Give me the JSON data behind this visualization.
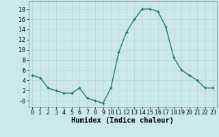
{
  "x": [
    0,
    1,
    2,
    3,
    4,
    5,
    6,
    7,
    8,
    9,
    10,
    11,
    12,
    13,
    14,
    15,
    16,
    17,
    18,
    19,
    20,
    21,
    22,
    23
  ],
  "y": [
    5.0,
    4.5,
    2.5,
    2.0,
    1.5,
    1.5,
    2.5,
    0.5,
    0.0,
    -0.5,
    2.5,
    9.5,
    13.5,
    16.0,
    18.0,
    18.0,
    17.5,
    14.5,
    8.5,
    6.0,
    5.0,
    4.0,
    2.5,
    2.5
  ],
  "line_color": "#1a7a6e",
  "marker": "P",
  "marker_size": 2.5,
  "xlabel": "Humidex (Indice chaleur)",
  "xlabel_fontsize": 7.5,
  "ylabel_ticks": [
    0,
    2,
    4,
    6,
    8,
    10,
    12,
    14,
    16,
    18
  ],
  "ytick_labels": [
    "-0",
    "2",
    "4",
    "6",
    "8",
    "10",
    "12",
    "14",
    "16",
    "18"
  ],
  "xtick_labels": [
    "0",
    "1",
    "2",
    "3",
    "4",
    "5",
    "6",
    "7",
    "8",
    "9",
    "10",
    "11",
    "12",
    "13",
    "14",
    "15",
    "16",
    "17",
    "18",
    "19",
    "20",
    "21",
    "22",
    "23"
  ],
  "ylim": [
    -1.2,
    19.5
  ],
  "xlim": [
    -0.5,
    23.5
  ],
  "bg_color": "#cce9e9",
  "grid_color": "#b8d8d8",
  "tick_fontsize": 6.0,
  "line_width": 1.0
}
